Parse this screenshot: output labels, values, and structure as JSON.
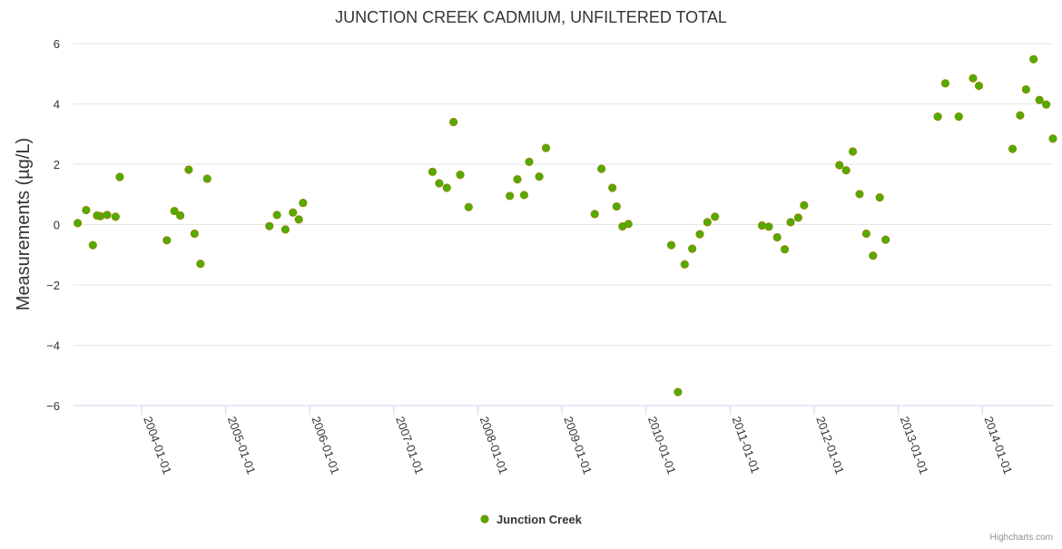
{
  "chart_data": {
    "type": "scatter",
    "title": "JUNCTION CREEK CADMIUM, UNFILTERED TOTAL",
    "xlabel": "",
    "ylabel": "Measurements (µg/L)",
    "ylim": [
      -6,
      6
    ],
    "yticks": [
      -6,
      -4,
      -2,
      0,
      2,
      4,
      6
    ],
    "xlim": [
      2003.19,
      2014.84
    ],
    "xticks": [
      {
        "label": "2004-01-01",
        "value": 2004.0
      },
      {
        "label": "2005-01-01",
        "value": 2005.0
      },
      {
        "label": "2006-01-01",
        "value": 2006.0
      },
      {
        "label": "2007-01-01",
        "value": 2007.0
      },
      {
        "label": "2008-01-01",
        "value": 2008.0
      },
      {
        "label": "2009-01-01",
        "value": 2009.0
      },
      {
        "label": "2010-01-01",
        "value": 2010.0
      },
      {
        "label": "2011-01-01",
        "value": 2011.0
      },
      {
        "label": "2012-01-01",
        "value": 2012.0
      },
      {
        "label": "2013-01-01",
        "value": 2013.0
      },
      {
        "label": "2014-01-01",
        "value": 2014.0
      }
    ],
    "grid": true,
    "legend_position": "bottom-center",
    "credits": "Highcharts.com",
    "series": [
      {
        "name": "Junction Creek",
        "color": "#4caf00",
        "edge_color": "#8a8a00",
        "points": [
          [
            2003.24,
            0.05
          ],
          [
            2003.34,
            0.48
          ],
          [
            2003.42,
            -0.68
          ],
          [
            2003.51,
            0.28
          ],
          [
            2003.59,
            0.32
          ],
          [
            2003.69,
            0.26
          ],
          [
            2003.74,
            1.58
          ],
          [
            2003.47,
            0.3
          ],
          [
            2004.3,
            -0.52
          ],
          [
            2004.39,
            0.45
          ],
          [
            2004.46,
            0.3
          ],
          [
            2004.56,
            1.82
          ],
          [
            2004.63,
            -0.3
          ],
          [
            2004.7,
            -1.3
          ],
          [
            2004.78,
            1.52
          ],
          [
            2005.52,
            -0.05
          ],
          [
            2005.61,
            0.32
          ],
          [
            2005.71,
            -0.16
          ],
          [
            2005.8,
            0.4
          ],
          [
            2005.87,
            0.17
          ],
          [
            2005.92,
            0.72
          ],
          [
            2007.46,
            1.75
          ],
          [
            2007.54,
            1.37
          ],
          [
            2007.63,
            1.22
          ],
          [
            2007.71,
            3.4
          ],
          [
            2007.79,
            1.65
          ],
          [
            2007.89,
            0.58
          ],
          [
            2008.38,
            0.95
          ],
          [
            2008.47,
            1.5
          ],
          [
            2008.55,
            0.98
          ],
          [
            2008.61,
            2.08
          ],
          [
            2008.73,
            1.59
          ],
          [
            2008.81,
            2.54
          ],
          [
            2009.39,
            0.35
          ],
          [
            2009.47,
            1.85
          ],
          [
            2009.6,
            1.22
          ],
          [
            2009.65,
            0.6
          ],
          [
            2009.72,
            -0.06
          ],
          [
            2009.79,
            0.02
          ],
          [
            2010.3,
            -0.68
          ],
          [
            2010.38,
            -5.55
          ],
          [
            2010.46,
            -1.32
          ],
          [
            2010.55,
            -0.8
          ],
          [
            2010.64,
            -0.32
          ],
          [
            2010.73,
            0.08
          ],
          [
            2010.82,
            0.26
          ],
          [
            2011.38,
            -0.03
          ],
          [
            2011.46,
            -0.07
          ],
          [
            2011.56,
            -0.42
          ],
          [
            2011.65,
            -0.82
          ],
          [
            2011.72,
            0.08
          ],
          [
            2011.81,
            0.23
          ],
          [
            2011.88,
            0.64
          ],
          [
            2012.3,
            1.97
          ],
          [
            2012.38,
            1.8
          ],
          [
            2012.46,
            2.42
          ],
          [
            2012.54,
            1.01
          ],
          [
            2012.62,
            -0.3
          ],
          [
            2012.7,
            -1.03
          ],
          [
            2012.78,
            0.9
          ],
          [
            2012.85,
            -0.5
          ],
          [
            2013.47,
            3.58
          ],
          [
            2013.56,
            4.68
          ],
          [
            2013.72,
            3.58
          ],
          [
            2013.89,
            4.85
          ],
          [
            2013.96,
            4.6
          ],
          [
            2014.36,
            2.51
          ],
          [
            2014.45,
            3.62
          ],
          [
            2014.52,
            4.48
          ],
          [
            2014.61,
            5.48
          ],
          [
            2014.68,
            4.13
          ],
          [
            2014.76,
            3.98
          ],
          [
            2014.84,
            2.85
          ]
        ]
      }
    ]
  }
}
